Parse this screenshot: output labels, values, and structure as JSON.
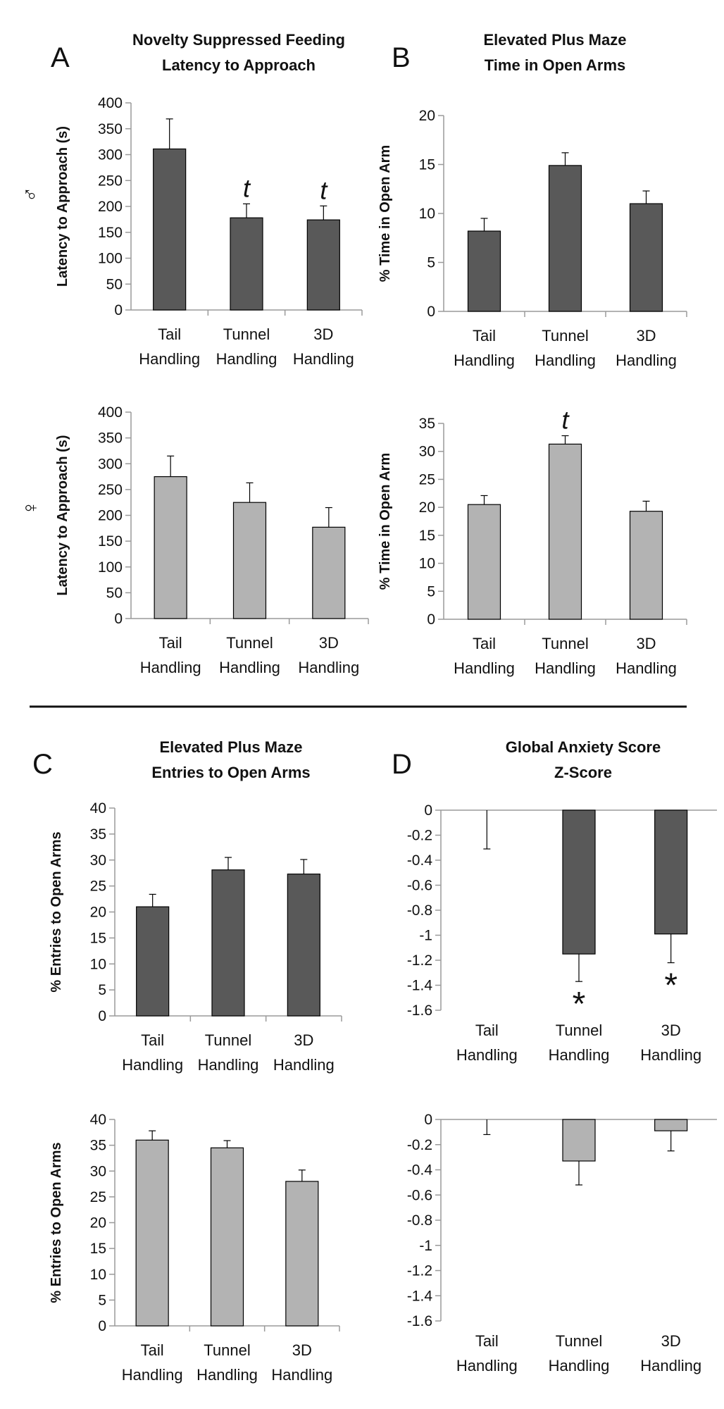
{
  "panel_labels": [
    "A",
    "B",
    "C",
    "D"
  ],
  "row_symbols": {
    "male": "♂",
    "female": "♀"
  },
  "titles": {
    "A": [
      "Novelty Suppressed Feeding",
      "Latency to Approach"
    ],
    "B": [
      "Elevated Plus Maze",
      "Time in Open Arms"
    ],
    "C": [
      "Elevated Plus Maze",
      "Entries to Open Arms"
    ],
    "D": [
      "Global Anxiety Score",
      "Z-Score"
    ]
  },
  "colors": {
    "male": "#595959",
    "female": "#b3b3b3",
    "axis": "#9a9a9a",
    "text": "#111111"
  },
  "chart_data": [
    {
      "id": "A-male",
      "type": "bar",
      "sex": "male",
      "categories": [
        [
          "Tail",
          "Handling"
        ],
        [
          "Tunnel",
          "Handling"
        ],
        [
          "3D",
          "Handling"
        ]
      ],
      "values": [
        311,
        178,
        174
      ],
      "errors": [
        58,
        27,
        27
      ],
      "ylabel": "Latency to Approach (s)",
      "ylim": [
        0,
        400
      ],
      "ticks": [
        0,
        50,
        100,
        150,
        200,
        250,
        300,
        350,
        400
      ],
      "annotations": [
        "",
        "t",
        "t"
      ]
    },
    {
      "id": "B-male",
      "type": "bar",
      "sex": "male",
      "categories": [
        [
          "Tail",
          "Handling"
        ],
        [
          "Tunnel",
          "Handling"
        ],
        [
          "3D",
          "Handling"
        ]
      ],
      "values": [
        8.2,
        14.9,
        11.0
      ],
      "errors": [
        1.3,
        1.3,
        1.3
      ],
      "ylabel": "% Time in Open Arm",
      "ylim": [
        0,
        20
      ],
      "ticks": [
        0,
        5,
        10,
        15,
        20
      ],
      "annotations": [
        "",
        "",
        ""
      ]
    },
    {
      "id": "A-female",
      "type": "bar",
      "sex": "female",
      "categories": [
        [
          "Tail",
          "Handling"
        ],
        [
          "Tunnel",
          "Handling"
        ],
        [
          "3D",
          "Handling"
        ]
      ],
      "values": [
        275,
        225,
        177
      ],
      "errors": [
        40,
        38,
        38
      ],
      "ylabel": "Latency to Approach (s)",
      "ylim": [
        0,
        400
      ],
      "ticks": [
        0,
        50,
        100,
        150,
        200,
        250,
        300,
        350,
        400
      ],
      "annotations": [
        "",
        "",
        ""
      ]
    },
    {
      "id": "B-female",
      "type": "bar",
      "sex": "female",
      "categories": [
        [
          "Tail",
          "Handling"
        ],
        [
          "Tunnel",
          "Handling"
        ],
        [
          "3D",
          "Handling"
        ]
      ],
      "values": [
        20.5,
        31.3,
        19.3
      ],
      "errors": [
        1.6,
        1.5,
        1.8
      ],
      "ylabel": "% Time in Open Arm",
      "ylim": [
        0,
        35
      ],
      "ticks": [
        0,
        5,
        10,
        15,
        20,
        25,
        30,
        35
      ],
      "annotations": [
        "",
        "t",
        ""
      ]
    },
    {
      "id": "C-male",
      "type": "bar",
      "sex": "male",
      "categories": [
        [
          "Tail",
          "Handling"
        ],
        [
          "Tunnel",
          "Handling"
        ],
        [
          "3D",
          "Handling"
        ]
      ],
      "values": [
        21.0,
        28.1,
        27.3
      ],
      "errors": [
        2.4,
        2.4,
        2.8
      ],
      "ylabel": "% Entries to Open Arms",
      "ylim": [
        0,
        40
      ],
      "ticks": [
        0,
        5,
        10,
        15,
        20,
        25,
        30,
        35,
        40
      ],
      "annotations": [
        "",
        "",
        ""
      ]
    },
    {
      "id": "D-male",
      "type": "bar",
      "sex": "male",
      "categories": [
        [
          "Tail",
          "Handling"
        ],
        [
          "Tunnel",
          "Handling"
        ],
        [
          "3D",
          "Handling"
        ]
      ],
      "values": [
        0,
        -1.15,
        -0.99
      ],
      "errors": [
        0.31,
        0.22,
        0.23
      ],
      "ylabel": "",
      "ylim": [
        -1.6,
        0
      ],
      "ticks": [
        0,
        -0.2,
        -0.4,
        -0.6,
        -0.8,
        -1,
        -1.2,
        -1.4,
        -1.6
      ],
      "annotations": [
        "",
        "*",
        "*"
      ]
    },
    {
      "id": "C-female",
      "type": "bar",
      "sex": "female",
      "categories": [
        [
          "Tail",
          "Handling"
        ],
        [
          "Tunnel",
          "Handling"
        ],
        [
          "3D",
          "Handling"
        ]
      ],
      "values": [
        36.0,
        34.5,
        28.0
      ],
      "errors": [
        1.8,
        1.4,
        2.2
      ],
      "ylabel": "% Entries to Open Arms",
      "ylim": [
        0,
        40
      ],
      "ticks": [
        0,
        5,
        10,
        15,
        20,
        25,
        30,
        35,
        40
      ],
      "annotations": [
        "",
        "",
        ""
      ]
    },
    {
      "id": "D-female",
      "type": "bar",
      "sex": "female",
      "categories": [
        [
          "Tail",
          "Handling"
        ],
        [
          "Tunnel",
          "Handling"
        ],
        [
          "3D",
          "Handling"
        ]
      ],
      "values": [
        0,
        -0.33,
        -0.09
      ],
      "errors": [
        0.12,
        0.19,
        0.16
      ],
      "ylabel": "",
      "ylim": [
        -1.6,
        0
      ],
      "ticks": [
        0,
        -0.2,
        -0.4,
        -0.6,
        -0.8,
        -1,
        -1.2,
        -1.4,
        -1.6
      ],
      "annotations": [
        "",
        "",
        ""
      ]
    }
  ]
}
